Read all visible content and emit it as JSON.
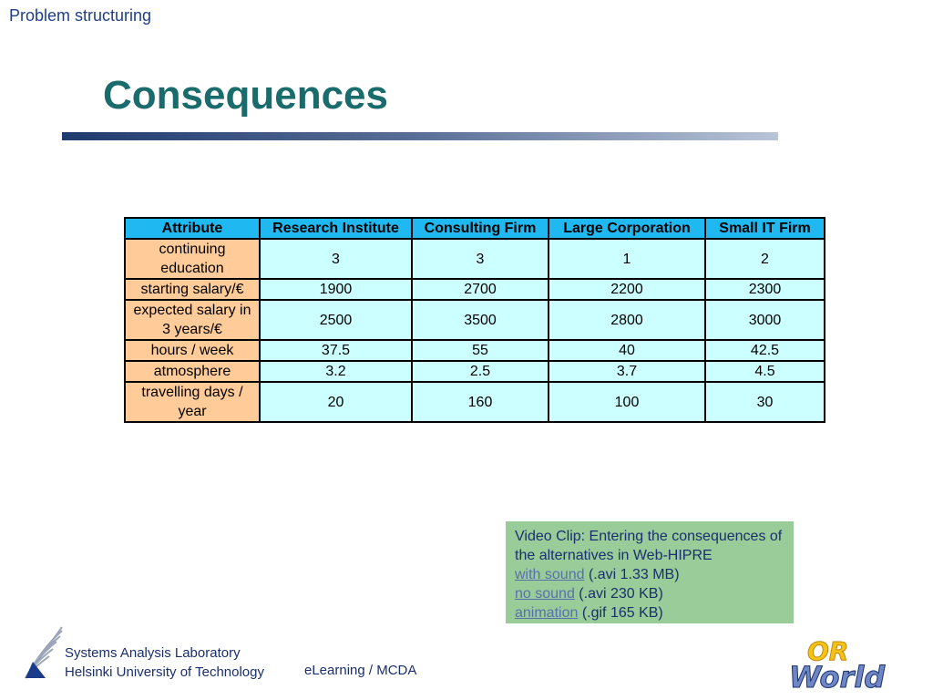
{
  "header": {
    "section": "Problem structuring",
    "title": "Consequences"
  },
  "table": {
    "headers": [
      "Attribute",
      "Research Institute",
      "Consulting Firm",
      "Large Corporation",
      "Small IT Firm"
    ],
    "rows": [
      {
        "attribute": "continuing education",
        "values": [
          "3",
          "3",
          "1",
          "2"
        ]
      },
      {
        "attribute": "starting salary/€",
        "values": [
          "1900",
          "2700",
          "2200",
          "2300"
        ]
      },
      {
        "attribute": "expected salary in 3 years/€",
        "values": [
          "2500",
          "3500",
          "2800",
          "3000"
        ]
      },
      {
        "attribute": "hours / week",
        "values": [
          "37.5",
          "55",
          "40",
          "42.5"
        ]
      },
      {
        "attribute": "atmosphere",
        "values": [
          "3.2",
          "2.5",
          "3.7",
          "4.5"
        ]
      },
      {
        "attribute": "travelling days / year",
        "values": [
          "20",
          "160",
          "100",
          "30"
        ]
      }
    ]
  },
  "video_box": {
    "caption": "Video Clip: Entering the consequences of the alternatives in Web-HIPRE",
    "links": [
      {
        "label": "with sound",
        "info": " (.avi 1.33 MB)"
      },
      {
        "label": "no sound",
        "info": " (.avi 230 KB)"
      },
      {
        "label": "animation",
        "info": " (.gif 165 KB)"
      }
    ]
  },
  "footer": {
    "lab": "Systems Analysis Laboratory",
    "university": "Helsinki University of Technology",
    "course": "eLearning / MCDA"
  },
  "logos": {
    "or_world_top": "OR",
    "or_world_bottom": "World"
  },
  "colors": {
    "title": "#1a6b6b",
    "header_cell": "#1fb8f0",
    "attribute_cell": "#ffcc99",
    "value_cell": "#ccffff",
    "video_box": "#99cc99"
  }
}
